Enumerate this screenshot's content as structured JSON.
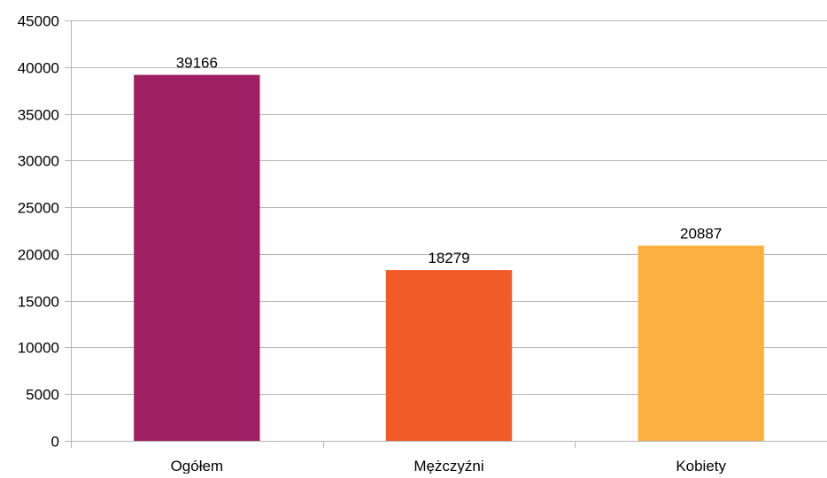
{
  "chart_data": {
    "type": "bar",
    "title": "",
    "xlabel": "",
    "ylabel": "",
    "categories": [
      "Ogółem",
      "Mężczyźni",
      "Kobiety"
    ],
    "values": [
      39166,
      18279,
      20887
    ],
    "data_labels": [
      "39166",
      "18279",
      "20887"
    ],
    "colors": [
      "#9e1f63",
      "#f15a29",
      "#fbb040"
    ],
    "ylim": [
      0,
      45000
    ],
    "yticks": [
      0,
      5000,
      10000,
      15000,
      20000,
      25000,
      30000,
      35000,
      40000,
      45000
    ],
    "ytick_labels": [
      "0",
      "5000",
      "10000",
      "15000",
      "20000",
      "25000",
      "30000",
      "35000",
      "40000",
      "45000"
    ],
    "grid": true,
    "gridline_color": "#b3b3b3",
    "axis_color": "#b3b3b3",
    "legend": "none"
  }
}
